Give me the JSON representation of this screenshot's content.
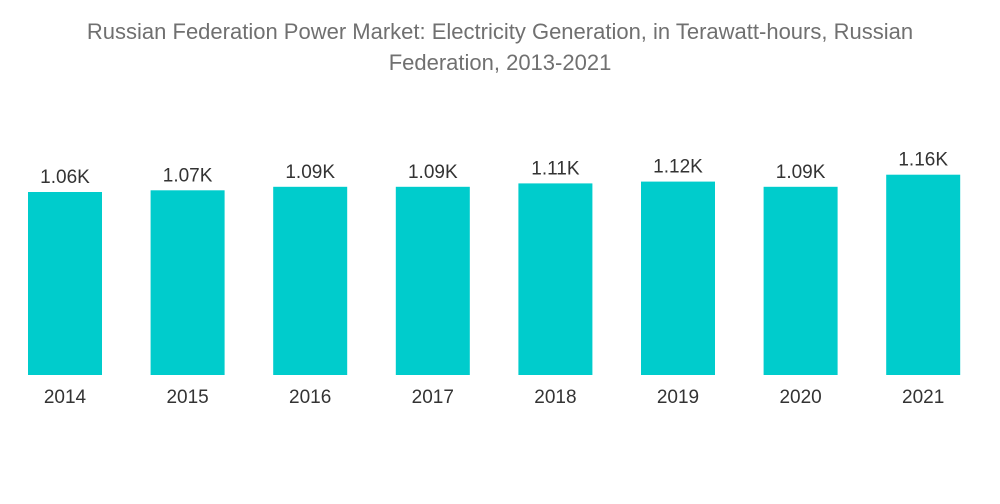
{
  "chart_data": {
    "type": "bar",
    "title": "Russian Federation Power Market: Electricity Generation, in Terawatt-hours, Russian Federation, 2013-2021",
    "categories": [
      "2014",
      "2015",
      "2016",
      "2017",
      "2018",
      "2019",
      "2020",
      "2021"
    ],
    "values": [
      1060,
      1070,
      1090,
      1090,
      1110,
      1120,
      1090,
      1160
    ],
    "data_labels": [
      "1.06K",
      "1.07K",
      "1.09K",
      "1.09K",
      "1.11K",
      "1.12K",
      "1.09K",
      "1.16K"
    ],
    "xlabel": "",
    "ylabel": "",
    "grid": false,
    "legend": "none",
    "bar_color": "#00CCCC"
  }
}
